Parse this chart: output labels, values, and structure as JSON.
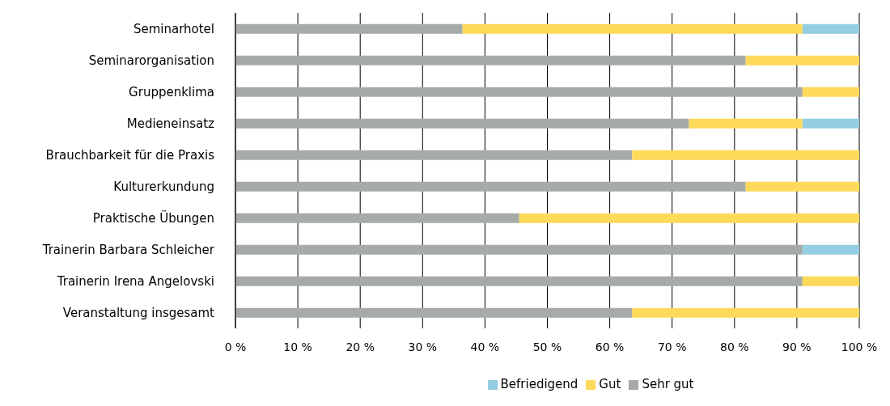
{
  "chart_data": {
    "type": "bar",
    "orientation": "horizontal",
    "stacked": true,
    "categories": [
      "Seminarhotel",
      "Seminarorganisation",
      "Gruppenklima",
      "Medieneinsatz",
      "Brauchbarkeit für die Praxis",
      "Kulturerkundung",
      "Praktische Übungen",
      "Trainerin Barbara Schleicher",
      "Trainerin Irena Angelovski",
      "Veranstaltung insgesamt"
    ],
    "series": [
      {
        "name": "Sehr gut",
        "color": "#a6aba8",
        "values": [
          36.4,
          81.8,
          90.9,
          72.7,
          63.6,
          81.8,
          45.5,
          90.9,
          90.9,
          63.6
        ]
      },
      {
        "name": "Gut",
        "color": "#ffd95a",
        "values": [
          54.5,
          18.2,
          9.1,
          18.2,
          36.4,
          18.2,
          54.5,
          0,
          9.1,
          36.4
        ]
      },
      {
        "name": "Befriedigend",
        "color": "#93cde2",
        "values": [
          9.1,
          0,
          0,
          9.1,
          0,
          0,
          0,
          9.1,
          0,
          0
        ]
      }
    ],
    "xlim": [
      0,
      100
    ],
    "xticks": [
      {
        "value": 0,
        "label": "0 %"
      },
      {
        "value": 10,
        "label": "10 %"
      },
      {
        "value": 20,
        "label": "20 %"
      },
      {
        "value": 30,
        "label": "30 %"
      },
      {
        "value": 40,
        "label": "40 %"
      },
      {
        "value": 50,
        "label": "50 %"
      },
      {
        "value": 60,
        "label": "60 %"
      },
      {
        "value": 70,
        "label": "70 %"
      },
      {
        "value": 80,
        "label": "80 %"
      },
      {
        "value": 90,
        "label": "90 %"
      },
      {
        "value": 100,
        "label": "100 %"
      }
    ],
    "grid": "x",
    "legend": "bottom"
  }
}
